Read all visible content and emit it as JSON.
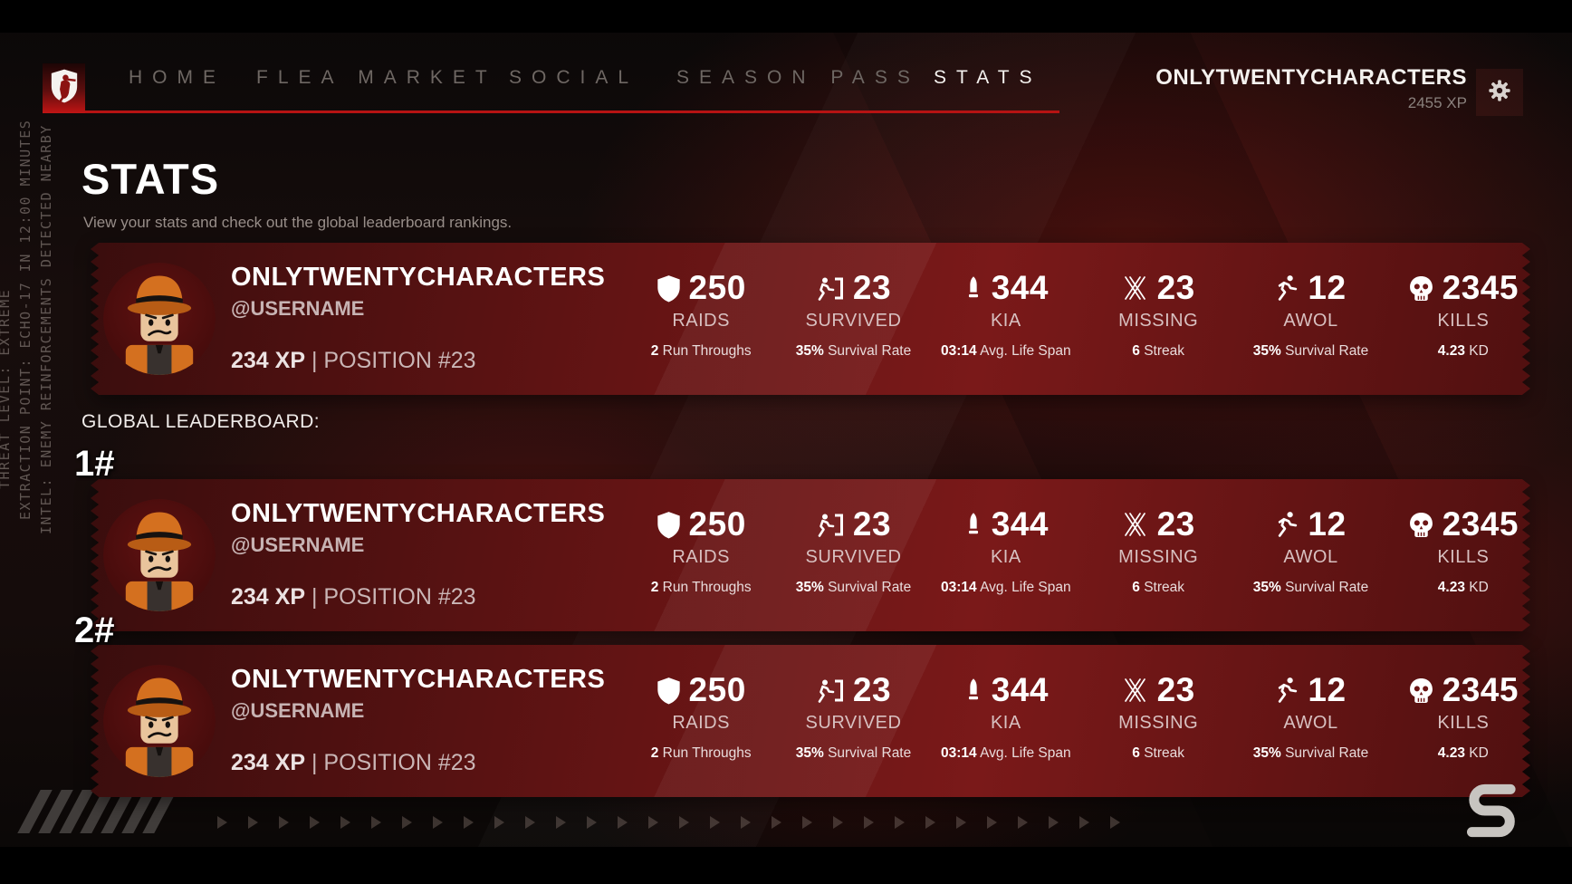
{
  "nav": {
    "logo_icon": "soldier-shield-logo",
    "items": [
      {
        "label": "HOME",
        "active": false
      },
      {
        "label": "FLEA MARKET",
        "active": false
      },
      {
        "label": "SOCIAL",
        "active": false
      },
      {
        "label": "SEASON PASS",
        "active": false
      },
      {
        "label": "STATS",
        "active": true
      }
    ],
    "user": {
      "name": "ONLYTWENTYCHARACTERS",
      "xp": "2455 XP"
    },
    "settings_icon": "gear-icon"
  },
  "hud_side_text": {
    "lines": [
      "THREAT LEVEL: EXTREME",
      "EXTRACTION POINT: ECHO-17 IN 12:00 MINUTES",
      "INTEL: ENEMY REINFORCEMENTS DETECTED NEARBY"
    ]
  },
  "page": {
    "title": "STATS",
    "subtitle": "View your stats and check out the global leaderboard rankings."
  },
  "leaderboard_heading": "GLOBAL LEADERBOARD:",
  "cards": [
    {
      "rank": "",
      "name": "ONLYTWENTYCHARACTERS",
      "handle": "@USERNAME",
      "xp": "234 XP",
      "divider": "|",
      "position": "POSITION #23",
      "stats": [
        {
          "icon": "shield-icon",
          "value": "250",
          "label": "RAIDS",
          "sub_value": "2",
          "sub_label": "Run Throughs"
        },
        {
          "icon": "exit-door-icon",
          "value": "23",
          "label": "SURVIVED",
          "sub_value": "35%",
          "sub_label": "Survival Rate"
        },
        {
          "icon": "bullet-icon",
          "value": "344",
          "label": "KIA",
          "sub_value": "03:14",
          "sub_label": "Avg. Life Span"
        },
        {
          "icon": "missing-x-icon",
          "value": "23",
          "label": "MISSING",
          "sub_value": "6",
          "sub_label": "Streak"
        },
        {
          "icon": "running-icon",
          "value": "12",
          "label": "AWOL",
          "sub_value": "35%",
          "sub_label": "Survival Rate"
        },
        {
          "icon": "skull-icon",
          "value": "2345",
          "label": "KILLS",
          "sub_value": "4.23",
          "sub_label": "KD"
        }
      ]
    },
    {
      "rank": "1#",
      "name": "ONLYTWENTYCHARACTERS",
      "handle": "@USERNAME",
      "xp": "234 XP",
      "divider": "|",
      "position": "POSITION #23",
      "stats": [
        {
          "icon": "shield-icon",
          "value": "250",
          "label": "RAIDS",
          "sub_value": "2",
          "sub_label": "Run Throughs"
        },
        {
          "icon": "exit-door-icon",
          "value": "23",
          "label": "SURVIVED",
          "sub_value": "35%",
          "sub_label": "Survival Rate"
        },
        {
          "icon": "bullet-icon",
          "value": "344",
          "label": "KIA",
          "sub_value": "03:14",
          "sub_label": "Avg. Life Span"
        },
        {
          "icon": "missing-x-icon",
          "value": "23",
          "label": "MISSING",
          "sub_value": "6",
          "sub_label": "Streak"
        },
        {
          "icon": "running-icon",
          "value": "12",
          "label": "AWOL",
          "sub_value": "35%",
          "sub_label": "Survival Rate"
        },
        {
          "icon": "skull-icon",
          "value": "2345",
          "label": "KILLS",
          "sub_value": "4.23",
          "sub_label": "KD"
        }
      ]
    },
    {
      "rank": "2#",
      "name": "ONLYTWENTYCHARACTERS",
      "handle": "@USERNAME",
      "xp": "234 XP",
      "divider": "|",
      "position": "POSITION #23",
      "stats": [
        {
          "icon": "shield-icon",
          "value": "250",
          "label": "RAIDS",
          "sub_value": "2",
          "sub_label": "Run Throughs"
        },
        {
          "icon": "exit-door-icon",
          "value": "23",
          "label": "SURVIVED",
          "sub_value": "35%",
          "sub_label": "Survival Rate"
        },
        {
          "icon": "bullet-icon",
          "value": "344",
          "label": "KIA",
          "sub_value": "03:14",
          "sub_label": "Avg. Life Span"
        },
        {
          "icon": "missing-x-icon",
          "value": "23",
          "label": "MISSING",
          "sub_value": "6",
          "sub_label": "Streak"
        },
        {
          "icon": "running-icon",
          "value": "12",
          "label": "AWOL",
          "sub_value": "35%",
          "sub_label": "Survival Rate"
        },
        {
          "icon": "skull-icon",
          "value": "2345",
          "label": "KILLS",
          "sub_value": "4.23",
          "sub_label": "KD"
        }
      ]
    }
  ],
  "decor": {
    "slash_count": 7,
    "arrow_count": 30,
    "brand_mark": "s-logo"
  },
  "colors": {
    "accent_red": "#b61313",
    "card_red": "#7a1919",
    "logo_red": "#c01414"
  }
}
